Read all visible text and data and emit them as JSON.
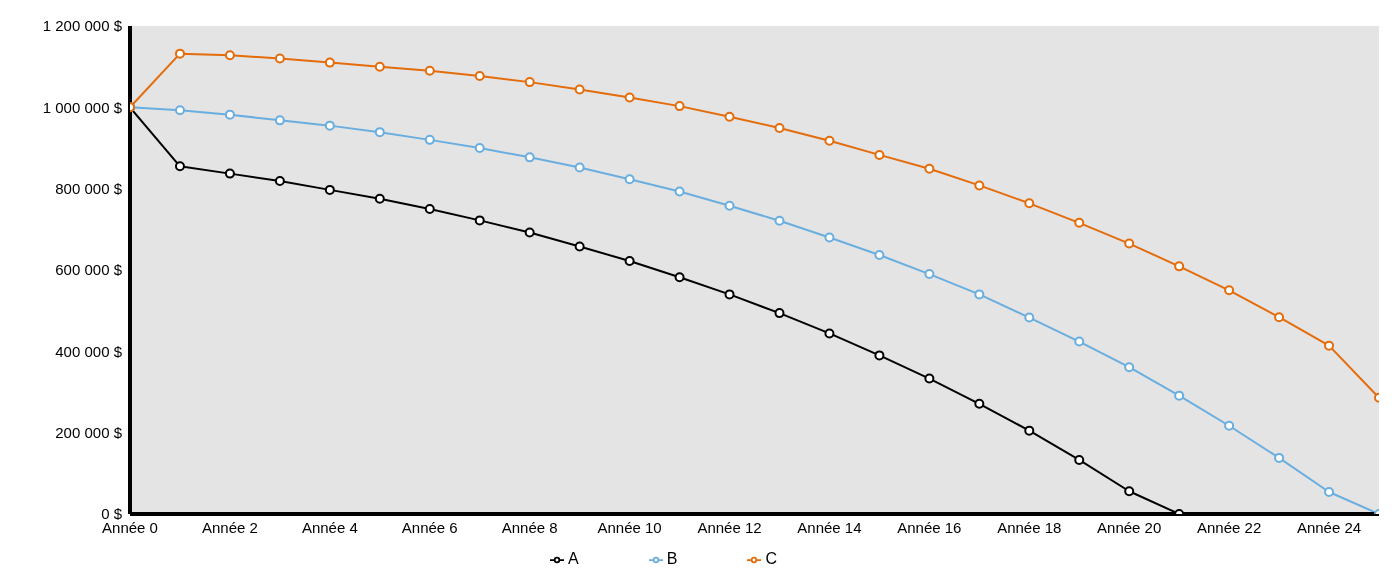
{
  "chart_data": {
    "type": "line",
    "categories": [
      "Année 0",
      null,
      "Année 2",
      null,
      "Année 4",
      null,
      "Année 6",
      null,
      "Année 8",
      null,
      "Année 10",
      null,
      "Année 12",
      null,
      "Année 14",
      null,
      "Année 16",
      null,
      "Année 18",
      null,
      "Année 20",
      null,
      "Année 22",
      null,
      "Année 24",
      null
    ],
    "series": [
      {
        "name": "A",
        "color": "#000000",
        "values": [
          1000000,
          855000,
          837000,
          819000,
          797000,
          775000,
          750000,
          722000,
          692000,
          658000,
          622000,
          582000,
          540000,
          494000,
          444000,
          390000,
          333000,
          271000,
          205000,
          133000,
          56000,
          0,
          null,
          null,
          null,
          null
        ]
      },
      {
        "name": "B",
        "color": "#6aaee0",
        "values": [
          1000000,
          993000,
          982000,
          968000,
          955000,
          939000,
          920000,
          900000,
          877000,
          852000,
          823000,
          793000,
          758000,
          721000,
          680000,
          637000,
          590000,
          540000,
          483000,
          424000,
          361000,
          291000,
          217000,
          138000,
          54000,
          0
        ]
      },
      {
        "name": "C",
        "color": "#e46c0a",
        "values": [
          1000000,
          1132000,
          1128000,
          1120000,
          1110000,
          1100000,
          1090000,
          1077000,
          1062000,
          1044000,
          1024000,
          1003000,
          977000,
          949000,
          918000,
          883000,
          849000,
          808000,
          764000,
          716000,
          665000,
          609000,
          550000,
          484000,
          414000,
          286000
        ]
      }
    ],
    "ylim": [
      0,
      1200000
    ],
    "yticks": [
      {
        "value": 0,
        "label": "0 $"
      },
      {
        "value": 200000,
        "label": "200 000 $"
      },
      {
        "value": 400000,
        "label": "400 000 $"
      },
      {
        "value": 600000,
        "label": "600 000 $"
      },
      {
        "value": 800000,
        "label": "800 000 $"
      },
      {
        "value": 1000000,
        "label": "1 000 000 $"
      },
      {
        "value": 1200000,
        "label": "1 200 000 $"
      }
    ],
    "legend": "bottom",
    "marker": "circle",
    "line_style": "solid"
  }
}
